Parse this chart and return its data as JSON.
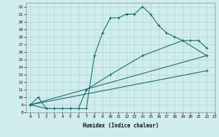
{
  "title": "",
  "xlabel": "Humidex (Indice chaleur)",
  "ylabel": "",
  "xlim": [
    -0.5,
    23
  ],
  "ylim": [
    8,
    22.5
  ],
  "xticks": [
    0,
    1,
    2,
    3,
    4,
    5,
    6,
    7,
    8,
    9,
    10,
    11,
    12,
    13,
    14,
    15,
    16,
    17,
    18,
    19,
    20,
    21,
    22,
    23
  ],
  "yticks": [
    8,
    9,
    10,
    11,
    12,
    13,
    14,
    15,
    16,
    17,
    18,
    19,
    20,
    21,
    22
  ],
  "bg_color": "#d0ecec",
  "grid_color": "#a8d4d4",
  "line_color": "#1a6868",
  "line1_x": [
    0,
    1,
    2,
    3,
    4,
    5,
    6,
    7,
    8,
    9,
    10,
    11,
    12,
    13,
    14,
    15,
    16,
    17,
    18,
    19,
    20,
    21,
    22
  ],
  "line1_y": [
    9,
    10,
    8.5,
    8.5,
    8.5,
    8.5,
    8.5,
    8.5,
    15.5,
    18.5,
    20.5,
    20.5,
    21,
    21,
    22,
    21,
    19.5,
    18.5,
    18,
    17.5,
    17.5,
    17.5,
    16.5
  ],
  "line2_x": [
    0,
    2,
    3,
    4,
    5,
    6,
    7,
    10,
    14,
    19,
    22
  ],
  "line2_y": [
    9,
    8.5,
    8.5,
    8.5,
    8.5,
    8.5,
    11,
    13,
    15.5,
    17.5,
    15.5
  ],
  "line3_x": [
    0,
    22
  ],
  "line3_y": [
    9,
    13.5
  ],
  "line4_x": [
    0,
    22
  ],
  "line4_y": [
    9,
    15.5
  ]
}
